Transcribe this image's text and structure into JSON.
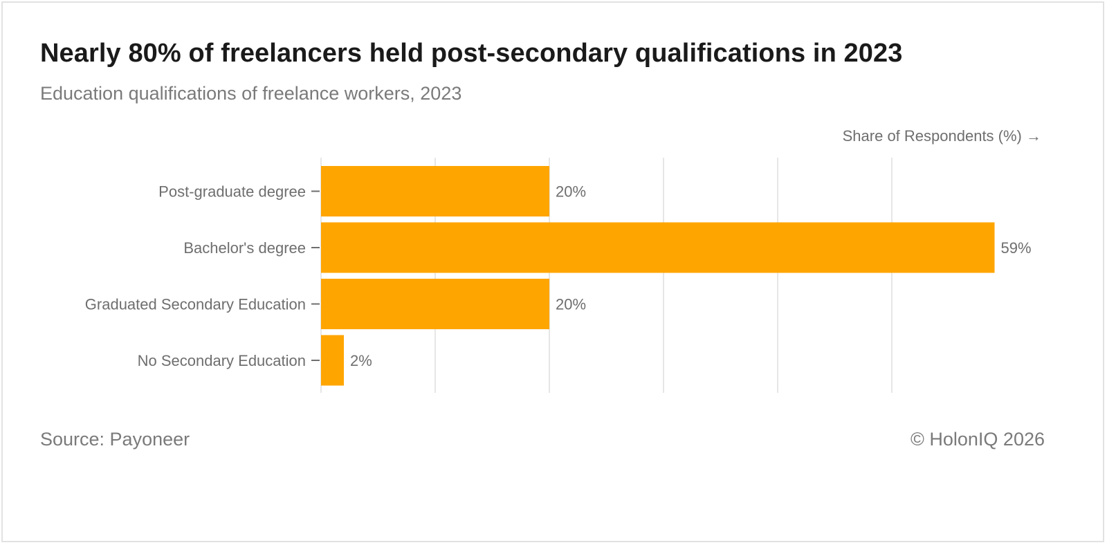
{
  "header": {
    "title": "Nearly 80% of freelancers held post-secondary qualifications in 2023",
    "subtitle": "Education qualifications of freelance workers, 2023"
  },
  "footer": {
    "source": "Source: Payoneer",
    "copyright": "© HolonIQ 2026"
  },
  "colors": {
    "bar": "#FFA500",
    "grid": "#e6e6e6",
    "text": "#6e6e6e"
  },
  "chart_data": {
    "type": "bar",
    "orientation": "horizontal",
    "categories": [
      "Post-graduate degree",
      "Bachelor's degree",
      "Graduated Secondary Education",
      "No Secondary Education"
    ],
    "values": [
      20,
      59,
      20,
      2
    ],
    "value_labels": [
      "20%",
      "59%",
      "20%",
      "2%"
    ],
    "xlabel": "Share of Respondents (%) →",
    "ylabel": "",
    "xlim": [
      0,
      60
    ],
    "grid": true,
    "gridline_values": [
      0,
      10,
      20,
      30,
      40,
      50
    ]
  }
}
